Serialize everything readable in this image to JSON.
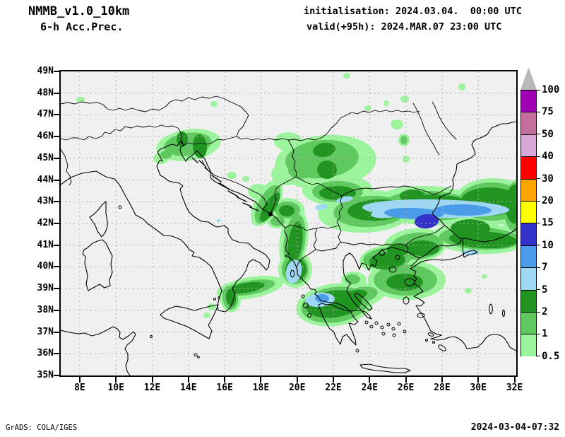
{
  "header": {
    "model": "NMMB_v1.0_10km",
    "product": "6-h Acc.Prec.",
    "init_line": "initialisation: 2024.03.04.  00:00 UTC",
    "valid_line": "valid(+95h): 2024.MAR.07 23:00 UTC"
  },
  "footer": {
    "credit": "GrADS: COLA/IGES",
    "timestamp": "2024-03-04-07:32"
  },
  "axes": {
    "y_labels": [
      "49N",
      "48N",
      "47N",
      "46N",
      "45N",
      "44N",
      "43N",
      "42N",
      "41N",
      "40N",
      "39N",
      "38N",
      "37N",
      "36N",
      "35N"
    ],
    "x_labels": [
      "8E",
      "10E",
      "12E",
      "14E",
      "16E",
      "18E",
      "20E",
      "22E",
      "24E",
      "26E",
      "28E",
      "30E",
      "32E"
    ]
  },
  "legend": {
    "labels": [
      "100",
      "75",
      "50",
      "40",
      "30",
      "20",
      "15",
      "10",
      "7",
      "5",
      "2",
      "1",
      "0.5"
    ],
    "segment_colors": [
      "#a000b4",
      "#c4709e",
      "#d8a8d8",
      "#ff0000",
      "#ffa500",
      "#ffff00",
      "#3333cc",
      "#4a9ce8",
      "#9fd8f2",
      "#219421",
      "#5fc95f",
      "#9cf49c"
    ],
    "above_max_color": "#b9b9b9",
    "below_min_color": "#ffffff"
  },
  "map": {
    "background": "#f0f0f0",
    "grid_color": "#b0b0b0",
    "coast_color": "#000000",
    "shade_colors": {
      "c05": "#9cf49c",
      "c1": "#5fc95f",
      "c2": "#219421",
      "c5": "#9fd8f2",
      "c7": "#4a9ce8",
      "c10": "#3333cc"
    }
  },
  "chart_data": {
    "type": "map",
    "model": "NMMB_v1.0_10km",
    "variable": "6-h Acc.Prec.",
    "initialisation": "2024.03.04.  00:00 UTC",
    "valid": "2024.MAR.07 23:00 UTC (+95h)",
    "lat_ticks": [
      49,
      48,
      47,
      46,
      45,
      44,
      43,
      42,
      41,
      40,
      39,
      38,
      37,
      36,
      35
    ],
    "lon_ticks": [
      8,
      10,
      12,
      14,
      16,
      18,
      20,
      22,
      24,
      26,
      28,
      30,
      32
    ],
    "shade_levels": [
      0.5,
      1,
      2,
      5,
      7,
      10,
      15,
      20,
      30,
      40,
      50,
      75,
      100
    ],
    "max_shaded_interval_on_map": "10-15"
  }
}
